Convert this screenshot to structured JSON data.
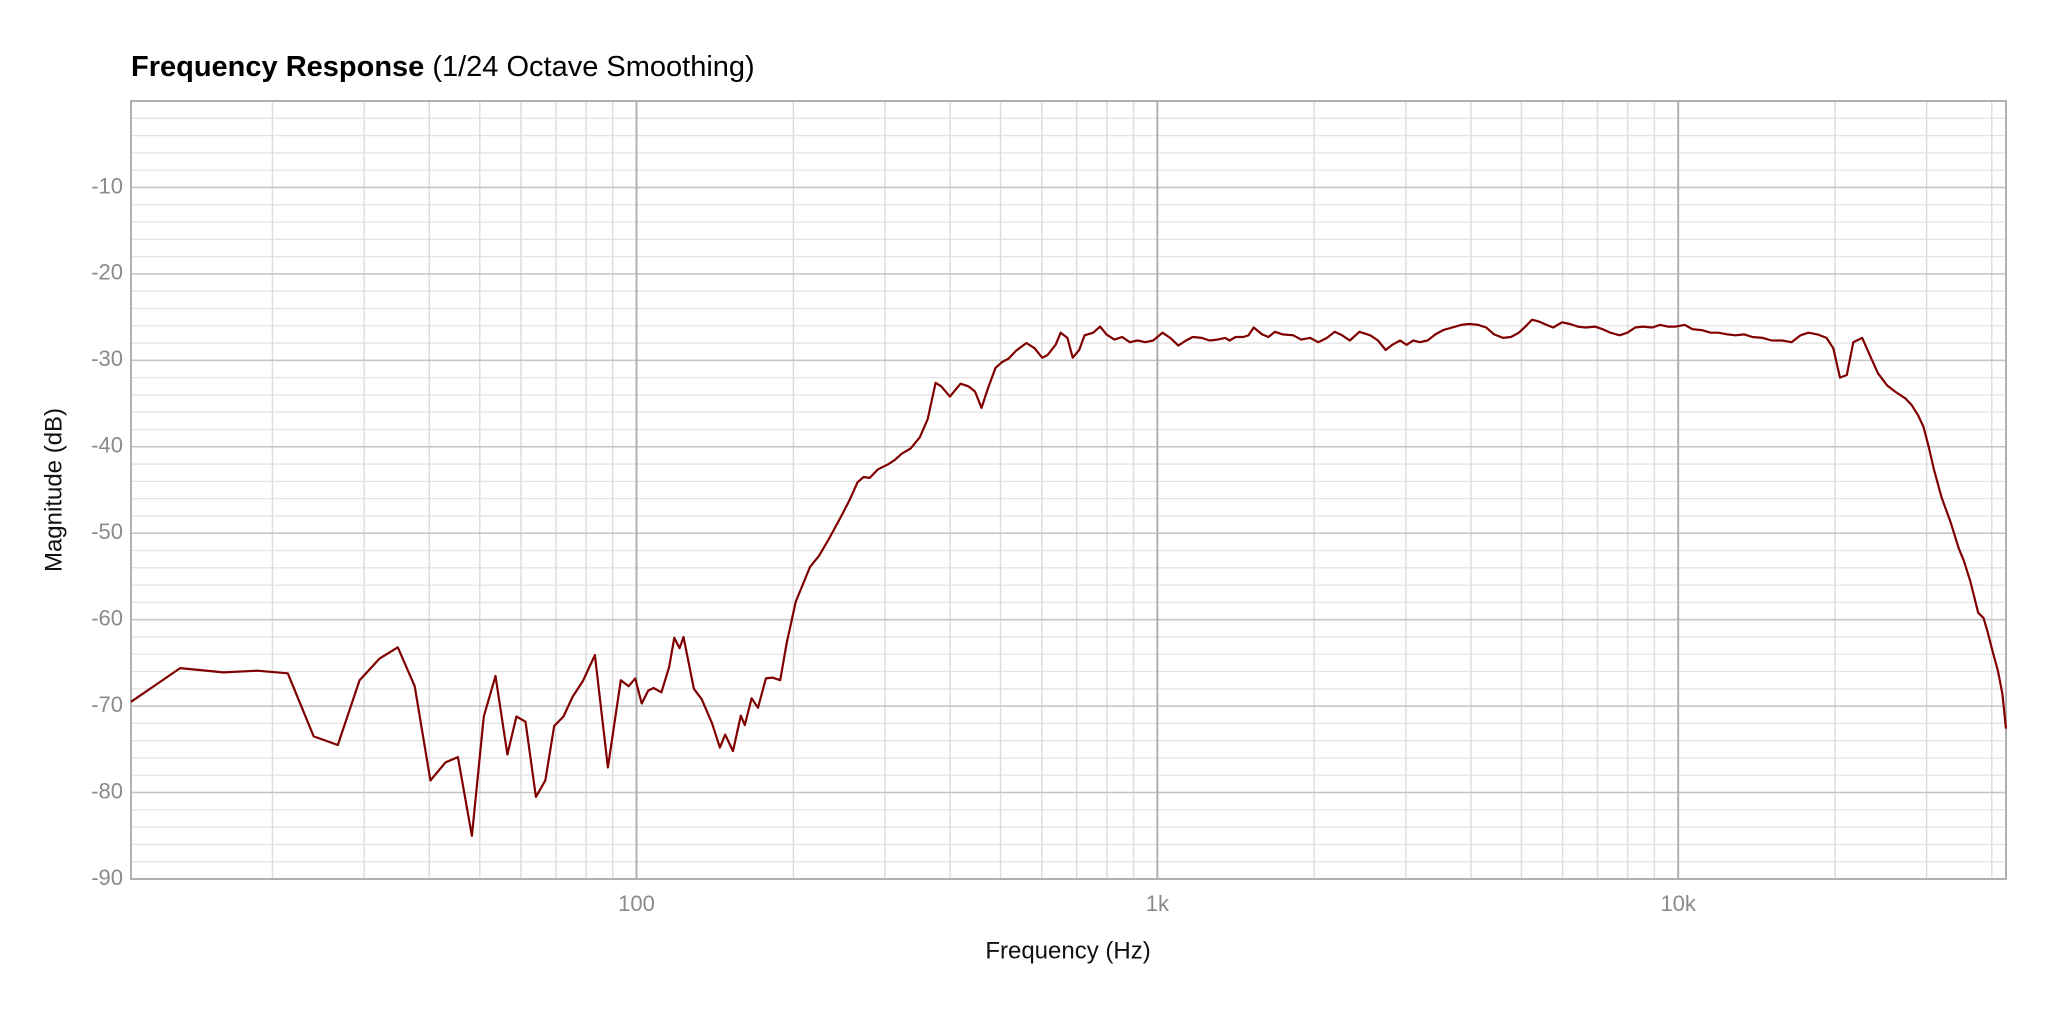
{
  "chart_data": {
    "type": "line",
    "title": "Frequency Response",
    "subtitle": "(1/24 Octave Smoothing)",
    "x_label": "Frequency (Hz)",
    "y_label": "Magnitude (dB)",
    "xscale": "log",
    "grid": true,
    "xlim": [
      10.7,
      42600
    ],
    "ylim": [
      -90,
      0
    ],
    "xticks": [
      100,
      {
        "value": 1000,
        "label": "1k"
      },
      {
        "value": 10000,
        "label": "10k"
      }
    ],
    "yticks": [
      -90,
      -80,
      -70,
      -60,
      -50,
      -40,
      -30,
      -20,
      -10
    ],
    "series": [
      {
        "color": "#800000",
        "x": [
          10.7,
          13.3,
          16.1,
          18.7,
          21.4,
          24.0,
          26.7,
          29.4,
          32.1,
          34.8,
          37.5,
          40.2,
          43.0,
          45.4,
          48.3,
          50.9,
          53.6,
          56.5,
          58.8,
          61.2,
          64.1,
          66.8,
          69.5,
          72.4,
          75.4,
          78.9,
          83.2,
          88.1,
          93.3,
          96.6,
          99.4,
          102.3,
          105.3,
          107.8,
          111.6,
          115.5,
          118.2,
          121.0,
          123.1,
          128.9,
          133.4,
          139.7,
          144.6,
          148.0,
          153.2,
          158.6,
          161.4,
          166.3,
          171.1,
          177.2,
          182.3,
          188.7,
          194.2,
          202.2,
          208.0,
          215.3,
          224.2,
          234.9,
          247.4,
          256.3,
          265.7,
          272.9,
          280.4,
          290.8,
          304.7,
          313.7,
          322.9,
          335.9,
          349.8,
          362.3,
          375.2,
          384.5,
          399.6,
          418.8,
          433.7,
          446.6,
          459.5,
          473.1,
          488.8,
          503.2,
          518.0,
          535.3,
          560.6,
          580.8,
          601.1,
          615.2,
          637.6,
          652.4,
          671.9,
          687.9,
          707.9,
          724.8,
          753.1,
          776.2,
          798.5,
          826.8,
          855.9,
          885.5,
          916.6,
          948.6,
          981.8,
          1023,
          1059,
          1097,
          1135,
          1169,
          1217,
          1260,
          1304,
          1350,
          1376,
          1413,
          1463,
          1496,
          1531,
          1589,
          1634,
          1682,
          1740,
          1824,
          1887,
          1964,
          2036,
          2117,
          2189,
          2263,
          2342,
          2443,
          2562,
          2652,
          2744,
          2826,
          2925,
          3011,
          3099,
          3190,
          3302,
          3418,
          3538,
          3683,
          3834,
          3969,
          4132,
          4280,
          4431,
          4613,
          4775,
          4943,
          5090,
          5240,
          5396,
          5586,
          5752,
          5985,
          6197,
          6415,
          6641,
          6920,
          7163,
          7415,
          7719,
          7990,
          8271,
          8563,
          8913,
          9226,
          9552,
          9888,
          10293,
          10655,
          11091,
          11545,
          11951,
          12441,
          12879,
          13406,
          13877,
          14529,
          15124,
          15834,
          16502,
          17178,
          17782,
          18510,
          19269,
          19850,
          20454,
          21076,
          21687,
          22560,
          23483,
          24193,
          25186,
          26078,
          27300,
          28094,
          28912,
          29583,
          30270,
          30974,
          32064,
          33380,
          34550,
          35361,
          36404,
          37675,
          38560,
          39265,
          40200,
          41100,
          41930,
          42600
        ],
        "values": [
          -69.5,
          -65.6,
          -66.1,
          -65.9,
          -66.2,
          -73.5,
          -74.5,
          -67.0,
          -64.5,
          -63.2,
          -67.7,
          -78.6,
          -76.5,
          -75.9,
          -85.0,
          -71.2,
          -66.5,
          -75.6,
          -71.2,
          -71.8,
          -80.5,
          -78.6,
          -72.3,
          -71.2,
          -68.9,
          -67.1,
          -64.1,
          -77.1,
          -67.0,
          -67.7,
          -66.8,
          -69.7,
          -68.2,
          -67.9,
          -68.4,
          -65.5,
          -62.1,
          -63.3,
          -62.0,
          -68.0,
          -69.2,
          -72.0,
          -74.8,
          -73.3,
          -75.2,
          -71.1,
          -72.2,
          -69.1,
          -70.2,
          -66.8,
          -66.7,
          -67.0,
          -62.7,
          -57.9,
          -56.1,
          -53.9,
          -52.6,
          -50.5,
          -48.0,
          -46.2,
          -44.1,
          -43.5,
          -43.6,
          -42.6,
          -42.0,
          -41.5,
          -40.8,
          -40.2,
          -38.9,
          -36.8,
          -32.6,
          -33.0,
          -34.2,
          -32.7,
          -33.0,
          -33.6,
          -35.5,
          -33.2,
          -30.9,
          -30.2,
          -29.8,
          -28.9,
          -28.0,
          -28.6,
          -29.7,
          -29.4,
          -28.2,
          -26.8,
          -27.4,
          -29.7,
          -28.8,
          -27.1,
          -26.8,
          -26.1,
          -27.0,
          -27.6,
          -27.3,
          -27.9,
          -27.7,
          -27.9,
          -27.7,
          -26.8,
          -27.4,
          -28.3,
          -27.7,
          -27.3,
          -27.4,
          -27.7,
          -27.6,
          -27.4,
          -27.7,
          -27.3,
          -27.3,
          -27.1,
          -26.2,
          -27.0,
          -27.3,
          -26.7,
          -27.0,
          -27.1,
          -27.6,
          -27.4,
          -27.9,
          -27.4,
          -26.7,
          -27.1,
          -27.7,
          -26.7,
          -27.1,
          -27.7,
          -28.8,
          -28.2,
          -27.7,
          -28.2,
          -27.7,
          -27.9,
          -27.7,
          -27.0,
          -26.5,
          -26.2,
          -25.9,
          -25.8,
          -25.9,
          -26.2,
          -27.0,
          -27.4,
          -27.3,
          -26.8,
          -26.1,
          -25.3,
          -25.5,
          -25.9,
          -26.2,
          -25.6,
          -25.8,
          -26.1,
          -26.2,
          -26.1,
          -26.4,
          -26.8,
          -27.1,
          -26.8,
          -26.2,
          -26.1,
          -26.2,
          -25.9,
          -26.1,
          -26.1,
          -25.9,
          -26.4,
          -26.5,
          -26.8,
          -26.8,
          -27.0,
          -27.1,
          -27.0,
          -27.3,
          -27.4,
          -27.7,
          -27.7,
          -27.9,
          -27.1,
          -26.8,
          -27.0,
          -27.4,
          -28.6,
          -32.0,
          -31.7,
          -27.9,
          -27.4,
          -29.8,
          -31.5,
          -32.9,
          -33.6,
          -34.4,
          -35.2,
          -36.4,
          -37.7,
          -40.0,
          -42.6,
          -45.9,
          -48.8,
          -51.7,
          -53.2,
          -55.6,
          -59.2,
          -59.8,
          -61.4,
          -63.8,
          -65.9,
          -68.6,
          -72.6
        ]
      }
    ]
  }
}
